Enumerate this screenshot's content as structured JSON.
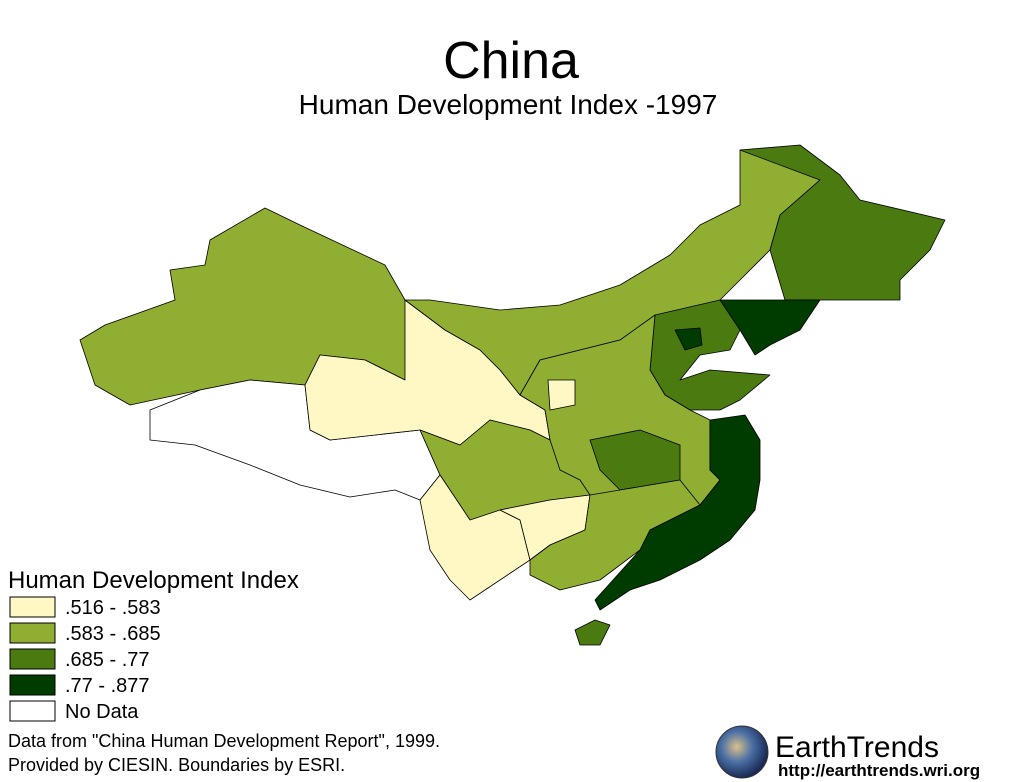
{
  "header": {
    "title": "China",
    "subtitle": "Human Development Index -1997"
  },
  "legend": {
    "title": "Human Development Index",
    "items": [
      {
        "label": ".516 - .583",
        "color": "#fff8c4"
      },
      {
        "label": ".583 - .685",
        "color": "#8fae32"
      },
      {
        "label": ".685 - .77",
        "color": "#4a7a10"
      },
      {
        "label": ".77 - .877",
        "color": "#003c00"
      },
      {
        "label": "No Data",
        "color": "#ffffff"
      }
    ]
  },
  "source": {
    "lines": [
      "Data from \"China Human Development Report\", 1999.",
      "Provided by CIESIN.  Boundaries by ESRI."
    ]
  },
  "logo": {
    "name": "EarthTrends",
    "url": "http://earthtrends.wri.org"
  }
}
